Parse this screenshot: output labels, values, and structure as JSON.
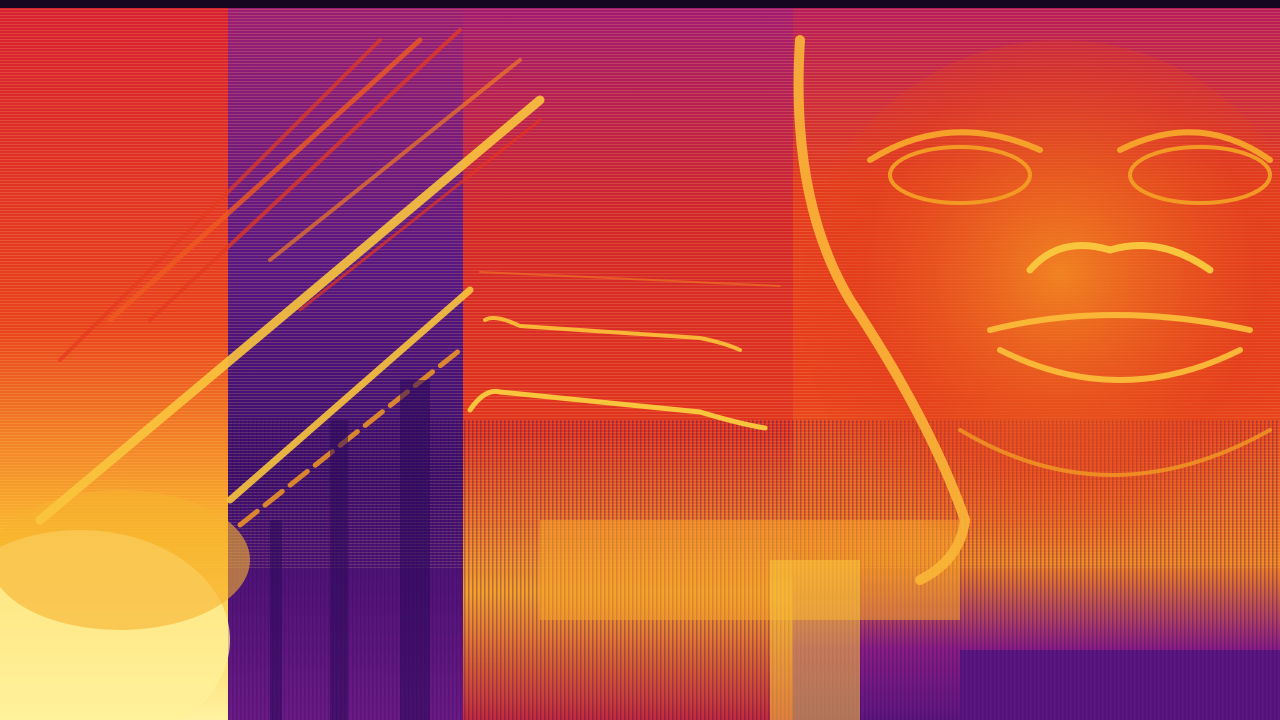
{
  "image": {
    "kind": "spectrogram",
    "colormap": "inferno-like",
    "has_visible_text": false
  },
  "colors": {
    "background_top_band": "#16061f",
    "low_energy": "#3b0d6d",
    "mid_energy": "#8e1a8a",
    "high_energy": "#e2261f",
    "peak_energy": "#f9c53d",
    "saturated": "#fff3a3"
  },
  "visible_features": [
    "dense-hot-band-left-bottom",
    "diagonal-rising-harmonic-chirps",
    "dark-purple-low-energy-region",
    "horizontal-tonal-glide-lines",
    "face-shaped-spectral-pattern-right",
    "broadband-noise-floor-bottom"
  ]
}
